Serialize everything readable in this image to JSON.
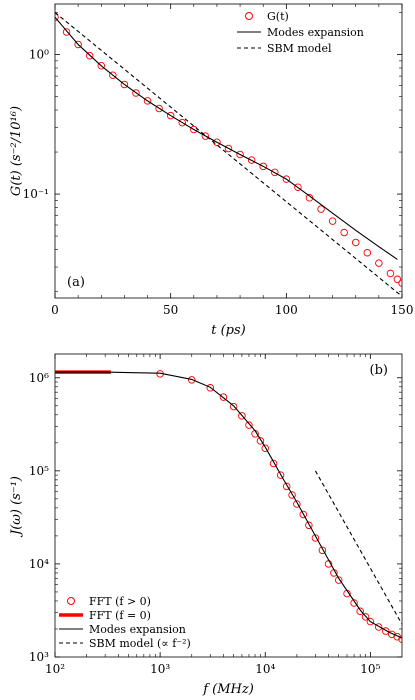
{
  "chart_data": [
    {
      "panel_tag": "(a)",
      "type": "line",
      "yscale": "log",
      "xlabel": "t (ps)",
      "ylabel": "G(t) (s⁻²/10¹⁶)",
      "xlim": [
        0,
        150
      ],
      "ylim": [
        0.018,
        2.3
      ],
      "xticks": [
        0,
        50,
        100,
        150
      ],
      "xtick_labels": [
        "0",
        "50",
        "100",
        "150"
      ],
      "yticks": [
        0.1,
        1
      ],
      "ytick_labels": [
        "10⁻¹",
        "10⁰"
      ],
      "grid": false,
      "legend_position": "top-right",
      "series": [
        {
          "name": "G(t)",
          "style": "markers",
          "color": "#ff0000",
          "x": [
            0,
            5,
            10,
            15,
            20,
            25,
            30,
            35,
            40,
            45,
            50,
            55,
            60,
            65,
            70,
            75,
            80,
            85,
            90,
            95,
            100,
            105,
            110,
            115,
            120,
            125,
            130,
            135,
            140,
            145,
            148,
            150
          ],
          "y": [
            1.85,
            1.45,
            1.18,
            0.98,
            0.83,
            0.71,
            0.61,
            0.53,
            0.465,
            0.41,
            0.365,
            0.325,
            0.29,
            0.26,
            0.235,
            0.212,
            0.192,
            0.175,
            0.158,
            0.143,
            0.128,
            0.112,
            0.094,
            0.078,
            0.064,
            0.053,
            0.045,
            0.038,
            0.032,
            0.027,
            0.0245,
            0.023
          ]
        },
        {
          "name": "Modes expansion",
          "style": "solid",
          "color": "#000000",
          "x": [
            0,
            10,
            20,
            30,
            40,
            50,
            60,
            70,
            80,
            90,
            100,
            110,
            120,
            130,
            140,
            148
          ],
          "y": [
            1.85,
            1.18,
            0.83,
            0.61,
            0.465,
            0.365,
            0.29,
            0.235,
            0.192,
            0.158,
            0.128,
            0.097,
            0.073,
            0.055,
            0.042,
            0.034
          ]
        },
        {
          "name": "SBM model",
          "style": "dashed",
          "color": "#000000",
          "x": [
            0,
            150
          ],
          "y": [
            2.0,
            0.0185
          ]
        }
      ]
    },
    {
      "panel_tag": "(b)",
      "type": "line",
      "xscale": "log",
      "yscale": "log",
      "xlabel": "f (MHz)",
      "ylabel": "J(ω) (s⁻¹)",
      "xlim": [
        100,
        200000
      ],
      "ylim": [
        1000,
        1800000
      ],
      "xticks": [
        100,
        1000,
        10000,
        100000
      ],
      "xtick_labels": [
        "10²",
        "10³",
        "10⁴",
        "10⁵"
      ],
      "yticks": [
        1000,
        10000,
        100000,
        1000000
      ],
      "ytick_labels": [
        "10³",
        "10⁴",
        "10⁵",
        "10⁶"
      ],
      "grid": false,
      "legend_position": "bottom-left",
      "series": [
        {
          "name": "FFT (f > 0)",
          "style": "markers",
          "color": "#ff0000",
          "x": [
            1000,
            2000,
            3000,
            4000,
            5000,
            6000,
            7000,
            8000,
            9000,
            10000,
            12000,
            14000,
            16000,
            18000,
            20000,
            23000,
            26000,
            30000,
            35000,
            40000,
            45000,
            50000,
            60000,
            70000,
            80000,
            90000,
            100000,
            120000,
            140000,
            160000,
            180000,
            200000
          ],
          "y": [
            1100000,
            950000,
            780000,
            620000,
            490000,
            390000,
            310000,
            250000,
            210000,
            175000,
            120000,
            90000,
            68000,
            55000,
            44000,
            34000,
            26000,
            19000,
            14000,
            10000,
            8000,
            6700,
            4800,
            3800,
            3100,
            2700,
            2400,
            2100,
            1900,
            1750,
            1650,
            1550
          ]
        },
        {
          "name": "FFT (f = 0)",
          "style": "thick-solid",
          "color": "#ff0000",
          "x": [
            100,
            340
          ],
          "y": [
            1150000,
            1150000
          ]
        },
        {
          "name": "Modes expansion",
          "style": "solid",
          "color": "#000000",
          "x": [
            100,
            300,
            1000,
            2000,
            3000,
            5000,
            8000,
            10000,
            15000,
            20000,
            30000,
            50000,
            80000,
            100000,
            150000,
            200000
          ],
          "y": [
            1150000,
            1150000,
            1120000,
            960000,
            790000,
            500000,
            270000,
            180000,
            80000,
            46000,
            20000,
            7000,
            3200,
            2400,
            1850,
            1600
          ]
        },
        {
          "name": "SBM model (∝ f⁻²)",
          "style": "dashed",
          "color": "#000000",
          "x": [
            30000,
            200000
          ],
          "y": [
            100000,
            2250
          ]
        }
      ]
    }
  ]
}
